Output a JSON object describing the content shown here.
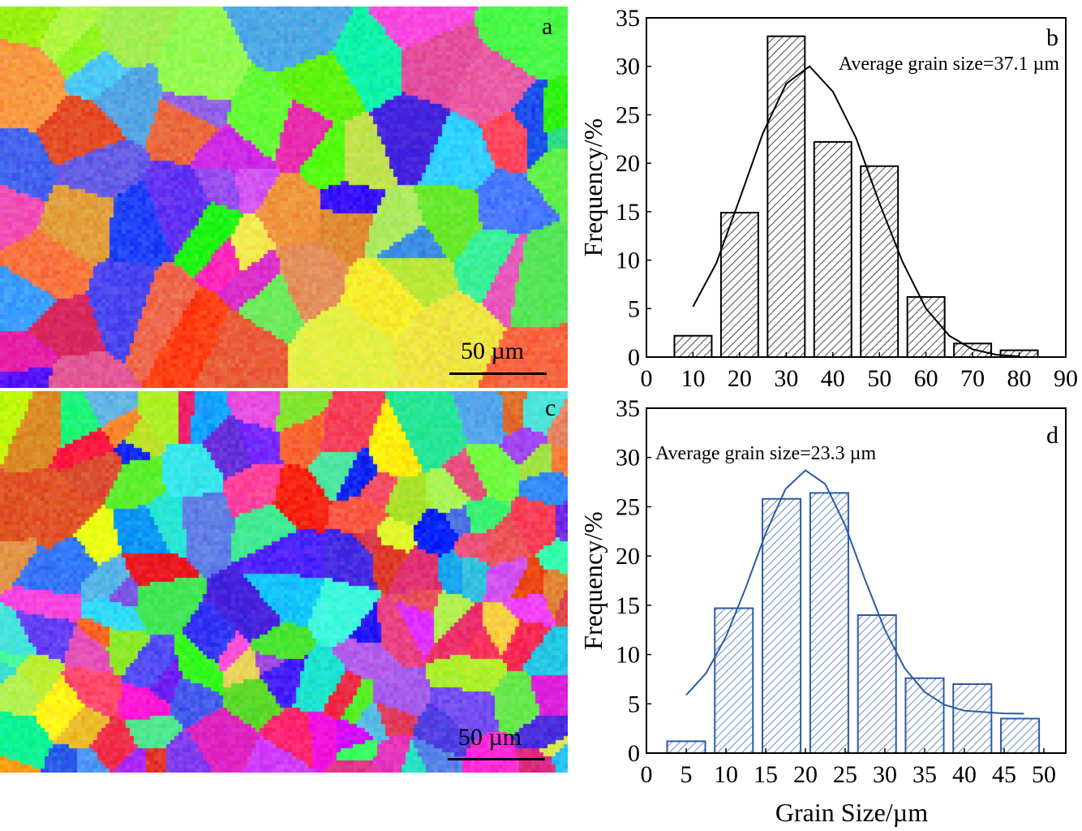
{
  "panels": {
    "a": {
      "letter": "a",
      "scale_label": "50 µm"
    },
    "c": {
      "letter": "c",
      "scale_label": "50 µm"
    }
  },
  "chart_data": [
    {
      "id": "b",
      "type": "bar",
      "panel_letter": "b",
      "annotation": "Average grain size=37.1 µm",
      "ylabel": "Frequency/%",
      "xlabel": "",
      "xlim": [
        0,
        90
      ],
      "ylim": [
        0,
        35
      ],
      "xticks": [
        0,
        10,
        20,
        30,
        40,
        50,
        60,
        70,
        80,
        90
      ],
      "yticks": [
        0,
        5,
        10,
        15,
        20,
        25,
        30,
        35
      ],
      "bin_width": 8,
      "x": [
        10,
        20,
        30,
        40,
        50,
        60,
        70,
        80
      ],
      "values": [
        2.2,
        14.9,
        33.1,
        22.2,
        19.7,
        6.2,
        1.4,
        0.7
      ],
      "color": "#000000",
      "fill": "diagonal-hatch",
      "fit_curve": {
        "type": "line",
        "x": [
          10,
          15,
          20,
          25,
          30,
          35,
          40,
          45,
          50,
          55,
          60,
          65,
          70,
          75,
          80
        ],
        "y": [
          5.2,
          9.7,
          16.3,
          23.1,
          28.2,
          30.0,
          27.4,
          22.6,
          15.9,
          9.8,
          5.0,
          2.2,
          0.8,
          0.25,
          0.06
        ]
      },
      "grid": false
    },
    {
      "id": "d",
      "type": "bar",
      "panel_letter": "d",
      "annotation": "Average grain size=23.3 µm",
      "ylabel": "Frequency/%",
      "xlabel": "Grain Size/µm",
      "xlim": [
        0,
        50
      ],
      "ylim": [
        0,
        35
      ],
      "xticks": [
        0,
        5,
        10,
        15,
        20,
        25,
        30,
        35,
        40,
        45,
        50
      ],
      "yticks": [
        0,
        5,
        10,
        15,
        20,
        25,
        30,
        35
      ],
      "bin_width": 4.8,
      "x": [
        5,
        11,
        17,
        23,
        29,
        35,
        41,
        47
      ],
      "values": [
        1.2,
        14.7,
        25.8,
        26.4,
        14.0,
        7.6,
        7.0,
        3.5
      ],
      "color": "#2b5aa6",
      "fill": "diagonal-hatch",
      "fit_curve": {
        "type": "line",
        "x": [
          5,
          7.5,
          10,
          12.5,
          15,
          17.5,
          20,
          22.5,
          25,
          27.5,
          30,
          32.5,
          35,
          37.5,
          40,
          45,
          47.5
        ],
        "y": [
          5.9,
          8.1,
          11.8,
          16.8,
          22.3,
          26.8,
          28.7,
          27.3,
          23.1,
          17.6,
          12.5,
          8.6,
          6.2,
          4.9,
          4.3,
          4.03,
          4.0
        ]
      },
      "grid": false
    }
  ]
}
